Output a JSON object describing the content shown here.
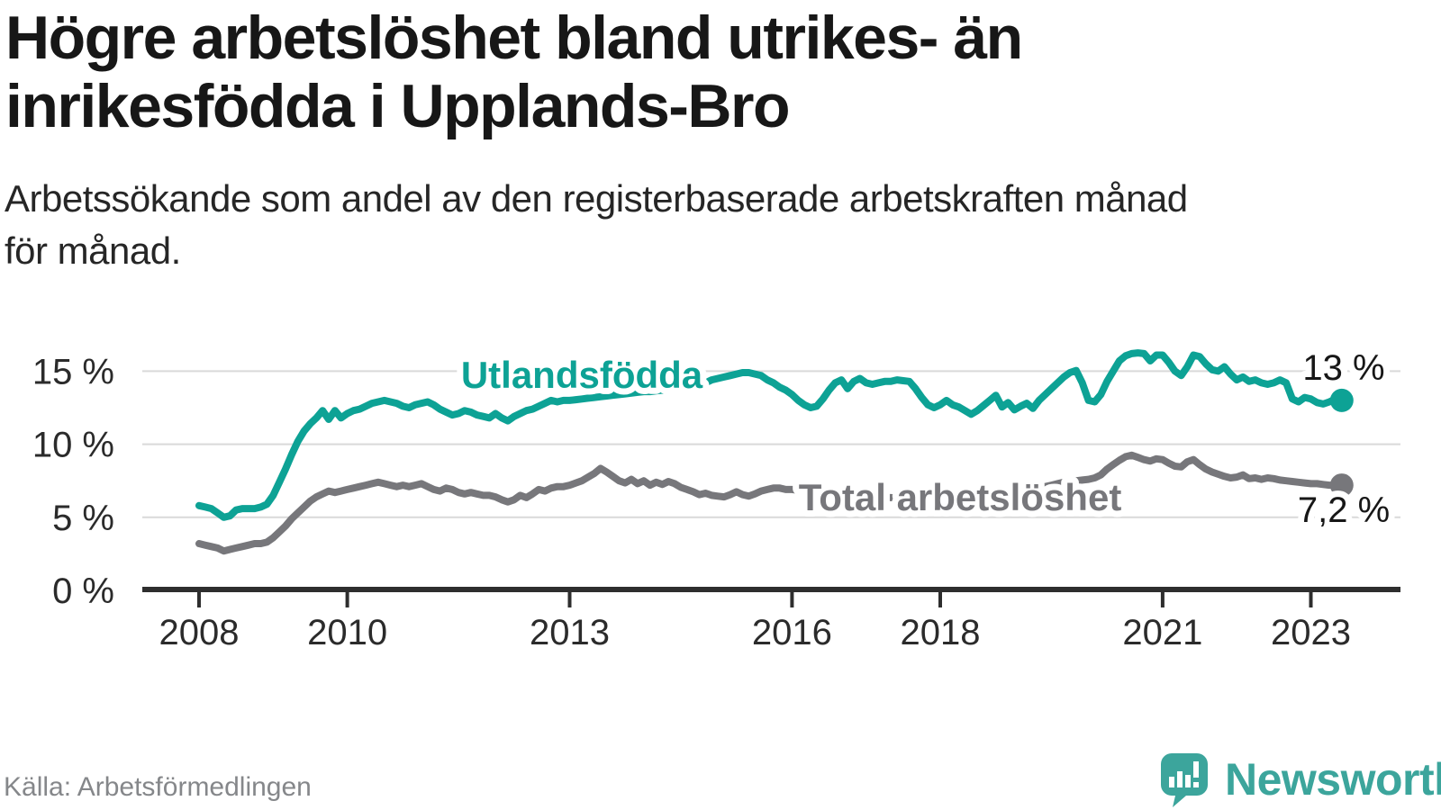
{
  "header": {
    "title_lines": [
      "Högre arbetslöshet bland utrikes- än",
      "inrikesfödda i Upplands-Bro"
    ],
    "subtitle_lines": [
      "Arbetssökande som andel av den registerbaserade arbetskraften månad",
      "för månad."
    ]
  },
  "footer": {
    "source": "Källa: Arbetsförmedlingen",
    "brand": "Newsworthy",
    "logo_icon": "speech-bubble-bar-chart-icon"
  },
  "colors": {
    "foreign_born_line": "#0da295",
    "total_line": "#77777b",
    "grid": "#d9d9d9",
    "axis": "#2e2e2e",
    "tick_text": "#2b2b2b",
    "heading_text": "#171717",
    "brand_teal": "#3ca59c"
  },
  "chart_data": {
    "type": "line",
    "title": "Högre arbetslöshet bland utrikes- än inrikesfödda i Upplands-Bro",
    "xlabel": "",
    "ylabel": "Arbetssökande som andel av den registerbaserade arbetskraften",
    "x_start": "2008-01",
    "x_step_months": 1,
    "x_end": "2023-06",
    "ylim": [
      0,
      17
    ],
    "grid": "horizontal",
    "legend_position": "inline-labels",
    "y_ticks": [
      {
        "value": 0,
        "label": "0 %"
      },
      {
        "value": 5,
        "label": "5 %"
      },
      {
        "value": 10,
        "label": "10 %"
      },
      {
        "value": 15,
        "label": "15 %"
      }
    ],
    "x_ticks": [
      {
        "value": 2008,
        "label": "2008"
      },
      {
        "value": 2010,
        "label": "2010"
      },
      {
        "value": 2013,
        "label": "2013"
      },
      {
        "value": 2016,
        "label": "2016"
      },
      {
        "value": 2018,
        "label": "2018"
      },
      {
        "value": 2021,
        "label": "2021"
      },
      {
        "value": 2023,
        "label": "2023"
      }
    ],
    "series": [
      {
        "name": "Utlandsfödda",
        "color": "#0da295",
        "end_label": "13 %",
        "end_value": 13.0,
        "values": [
          5.8,
          5.7,
          5.6,
          5.3,
          5.0,
          5.1,
          5.5,
          5.6,
          5.6,
          5.6,
          5.7,
          5.9,
          6.5,
          7.4,
          8.3,
          9.3,
          10.2,
          10.9,
          11.4,
          11.8,
          12.3,
          11.7,
          12.3,
          11.8,
          12.1,
          12.3,
          12.4,
          12.6,
          12.8,
          12.9,
          13.0,
          12.9,
          12.8,
          12.6,
          12.5,
          12.7,
          12.8,
          12.9,
          12.7,
          12.4,
          12.2,
          12.0,
          12.1,
          12.3,
          12.2,
          12.0,
          11.9,
          11.8,
          12.1,
          11.8,
          11.6,
          11.9,
          12.1,
          12.3,
          12.4,
          12.6,
          12.8,
          13.0,
          12.9,
          13.0,
          13.0,
          13.05,
          13.1,
          13.15,
          13.2,
          13.25,
          13.3,
          13.35,
          13.4,
          13.45,
          13.5,
          13.55,
          13.6,
          13.6,
          13.65,
          13.7,
          13.75,
          13.8,
          13.8,
          13.85,
          13.9,
          14.0,
          14.2,
          14.4,
          14.5,
          14.6,
          14.7,
          14.8,
          14.9,
          14.9,
          14.8,
          14.7,
          14.4,
          14.2,
          13.9,
          13.7,
          13.4,
          13.0,
          12.7,
          12.5,
          12.6,
          13.1,
          13.7,
          14.2,
          14.4,
          13.8,
          14.3,
          14.5,
          14.2,
          14.1,
          14.2,
          14.3,
          14.3,
          14.4,
          14.35,
          14.3,
          13.8,
          13.2,
          12.7,
          12.5,
          12.7,
          13.0,
          12.7,
          12.55,
          12.3,
          12.05,
          12.3,
          12.65,
          13.0,
          13.35,
          12.55,
          12.85,
          12.35,
          12.6,
          12.8,
          12.45,
          13.0,
          13.4,
          13.8,
          14.2,
          14.6,
          14.9,
          15.05,
          14.2,
          13.0,
          12.9,
          13.4,
          14.3,
          15.0,
          15.7,
          16.05,
          16.2,
          16.25,
          16.2,
          15.7,
          16.1,
          16.1,
          15.6,
          15.0,
          14.7,
          15.3,
          16.1,
          16.0,
          15.5,
          15.1,
          15.0,
          15.3,
          14.8,
          14.4,
          14.6,
          14.3,
          14.4,
          14.2,
          14.1,
          14.2,
          14.4,
          14.2,
          13.1,
          12.9,
          13.2,
          13.1,
          12.85,
          12.75,
          12.9,
          13.1,
          13.0
        ]
      },
      {
        "name": "Total arbetslöshet",
        "color": "#77777b",
        "end_label": "7,2 %",
        "end_value": 7.2,
        "values": [
          3.2,
          3.1,
          3.0,
          2.9,
          2.7,
          2.8,
          2.9,
          3.0,
          3.1,
          3.2,
          3.2,
          3.3,
          3.6,
          4.0,
          4.4,
          4.9,
          5.3,
          5.7,
          6.1,
          6.4,
          6.6,
          6.8,
          6.7,
          6.8,
          6.9,
          7.0,
          7.1,
          7.2,
          7.3,
          7.4,
          7.3,
          7.2,
          7.1,
          7.2,
          7.1,
          7.2,
          7.3,
          7.1,
          6.9,
          6.8,
          7.0,
          6.9,
          6.7,
          6.6,
          6.7,
          6.6,
          6.5,
          6.5,
          6.4,
          6.2,
          6.05,
          6.2,
          6.5,
          6.35,
          6.6,
          6.9,
          6.8,
          7.0,
          7.1,
          7.1,
          7.2,
          7.35,
          7.5,
          7.75,
          8.0,
          8.35,
          8.1,
          7.8,
          7.5,
          7.35,
          7.6,
          7.3,
          7.5,
          7.2,
          7.4,
          7.25,
          7.45,
          7.3,
          7.05,
          6.9,
          6.75,
          6.55,
          6.65,
          6.5,
          6.45,
          6.4,
          6.55,
          6.75,
          6.55,
          6.45,
          6.6,
          6.8,
          6.9,
          7.0,
          7.0,
          6.9,
          6.9,
          6.85,
          6.8,
          6.75,
          6.7,
          6.65,
          6.6,
          6.6,
          6.55,
          6.5,
          6.5,
          6.45,
          6.45,
          6.4,
          6.4,
          6.35,
          6.35,
          6.3,
          6.3,
          6.3,
          6.3,
          6.3,
          6.3,
          6.3,
          6.3,
          6.3,
          6.3,
          6.3,
          6.3,
          6.35,
          6.4,
          6.45,
          6.5,
          6.55,
          6.6,
          6.65,
          6.7,
          6.75,
          6.8,
          6.9,
          7.0,
          7.1,
          7.2,
          7.3,
          7.4,
          7.45,
          7.5,
          7.55,
          7.6,
          7.7,
          7.9,
          8.3,
          8.6,
          8.9,
          9.15,
          9.25,
          9.1,
          8.95,
          8.85,
          9.0,
          8.95,
          8.7,
          8.5,
          8.45,
          8.8,
          8.95,
          8.6,
          8.3,
          8.1,
          7.95,
          7.8,
          7.7,
          7.75,
          7.9,
          7.65,
          7.7,
          7.6,
          7.7,
          7.65,
          7.55,
          7.5,
          7.45,
          7.4,
          7.35,
          7.3,
          7.3,
          7.25,
          7.2,
          7.2,
          7.2
        ]
      }
    ]
  }
}
